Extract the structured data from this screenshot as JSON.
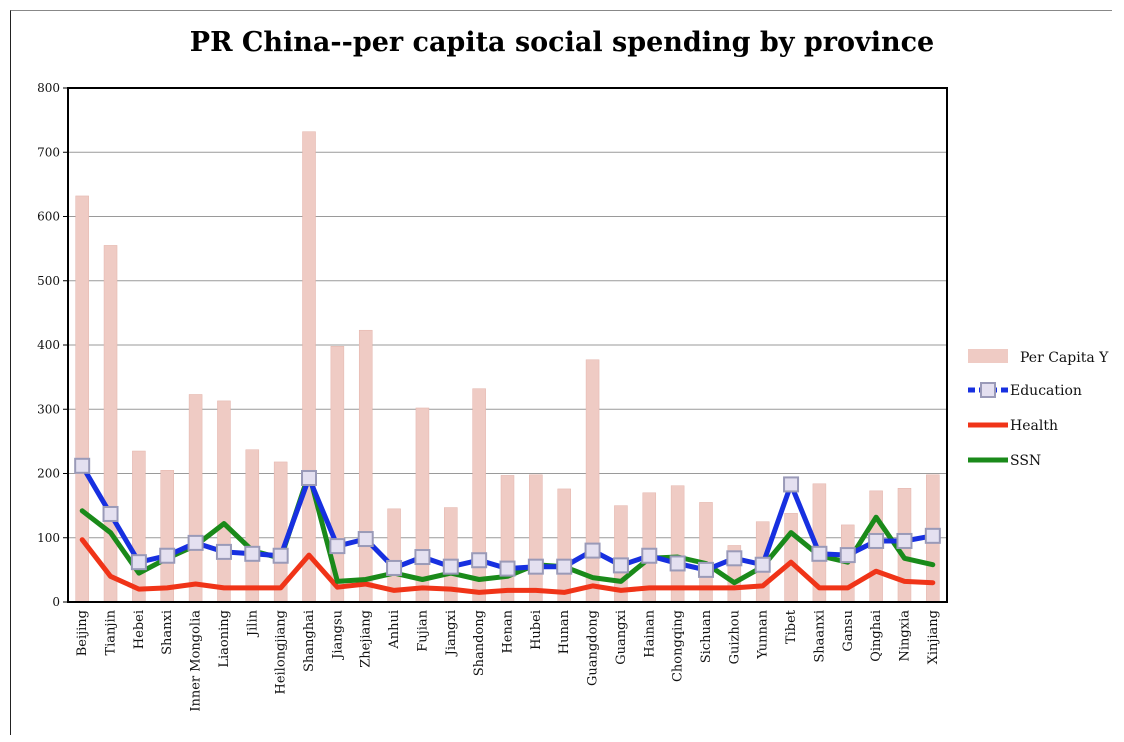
{
  "chart_data": {
    "type": "bar",
    "title": "PR China--per capita social spending by province",
    "ylim": [
      0,
      800
    ],
    "yticks": [
      0,
      100,
      200,
      300,
      400,
      500,
      600,
      700,
      800
    ],
    "grid": true,
    "legend_position": "right",
    "categories": [
      "Beijing",
      "Tianjin",
      "Hebei",
      "Shanxi",
      "Inner Mongolia",
      "Liaoning",
      "Jilin",
      "Heilongjiang",
      "Shanghai",
      "Jiangsu",
      "Zhejiang",
      "Anhui",
      "Fujian",
      "Jiangxi",
      "Shandong",
      "Henan",
      "Hubei",
      "Hunan",
      "Guangdong",
      "Guangxi",
      "Hainan",
      "Chongqing",
      "Sichuan",
      "Guizhou",
      "Yunnan",
      "Tibet",
      "Shaanxi",
      "Gansu",
      "Qinghai",
      "Ningxia",
      "Xinjiang"
    ],
    "series": [
      {
        "name": "Per Capita Y",
        "kind": "bar",
        "color": "#efcbc4",
        "values": [
          632,
          555,
          235,
          205,
          323,
          313,
          237,
          218,
          732,
          398,
          423,
          145,
          302,
          147,
          332,
          197,
          198,
          176,
          377,
          150,
          170,
          181,
          155,
          88,
          125,
          138,
          184,
          120,
          173,
          177,
          198
        ]
      },
      {
        "name": "Education",
        "kind": "line-marker",
        "color": "#1730e0",
        "values": [
          212,
          137,
          62,
          72,
          92,
          78,
          75,
          72,
          193,
          87,
          98,
          53,
          70,
          55,
          65,
          52,
          55,
          55,
          80,
          57,
          72,
          60,
          50,
          68,
          58,
          183,
          75,
          73,
          95,
          95,
          103
        ]
      },
      {
        "name": "Health",
        "kind": "line",
        "color": "#f03418",
        "values": [
          97,
          40,
          20,
          22,
          28,
          22,
          22,
          22,
          73,
          23,
          28,
          18,
          22,
          20,
          15,
          18,
          18,
          15,
          25,
          18,
          22,
          22,
          22,
          22,
          25,
          62,
          22,
          22,
          48,
          32,
          30
        ]
      },
      {
        "name": "SSN",
        "kind": "line",
        "color": "#1a8a1a",
        "values": [
          142,
          108,
          45,
          68,
          88,
          122,
          80,
          68,
          200,
          32,
          35,
          45,
          35,
          45,
          35,
          40,
          58,
          55,
          38,
          32,
          68,
          70,
          60,
          30,
          55,
          108,
          72,
          62,
          132,
          68,
          58
        ]
      }
    ]
  }
}
